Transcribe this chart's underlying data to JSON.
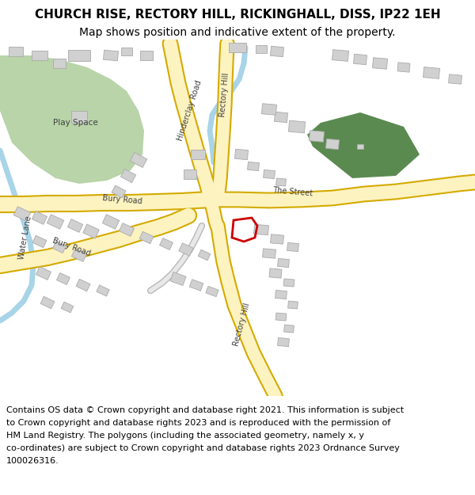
{
  "title": "CHURCH RISE, RECTORY HILL, RICKINGHALL, DISS, IP22 1EH",
  "subtitle": "Map shows position and indicative extent of the property.",
  "footer_lines": [
    "Contains OS data © Crown copyright and database right 2021. This information is subject",
    "to Crown copyright and database rights 2023 and is reproduced with the permission of",
    "HM Land Registry. The polygons (including the associated geometry, namely x, y",
    "co-ordinates) are subject to Crown copyright and database rights 2023 Ordnance Survey",
    "100026316."
  ],
  "map_bg": "#ffffff",
  "road_yellow": "#fdf3c0",
  "road_yellow_border": "#d4aa00",
  "green_light": "#b8d4a8",
  "green_dark": "#5a8a50",
  "building_color": "#d0d0d0",
  "building_border": "#aaaaaa",
  "water_color": "#a8d4e8",
  "red_outline": "#cc0000",
  "title_fontsize": 11,
  "subtitle_fontsize": 10,
  "footer_fontsize": 8,
  "label_fontsize": 7
}
